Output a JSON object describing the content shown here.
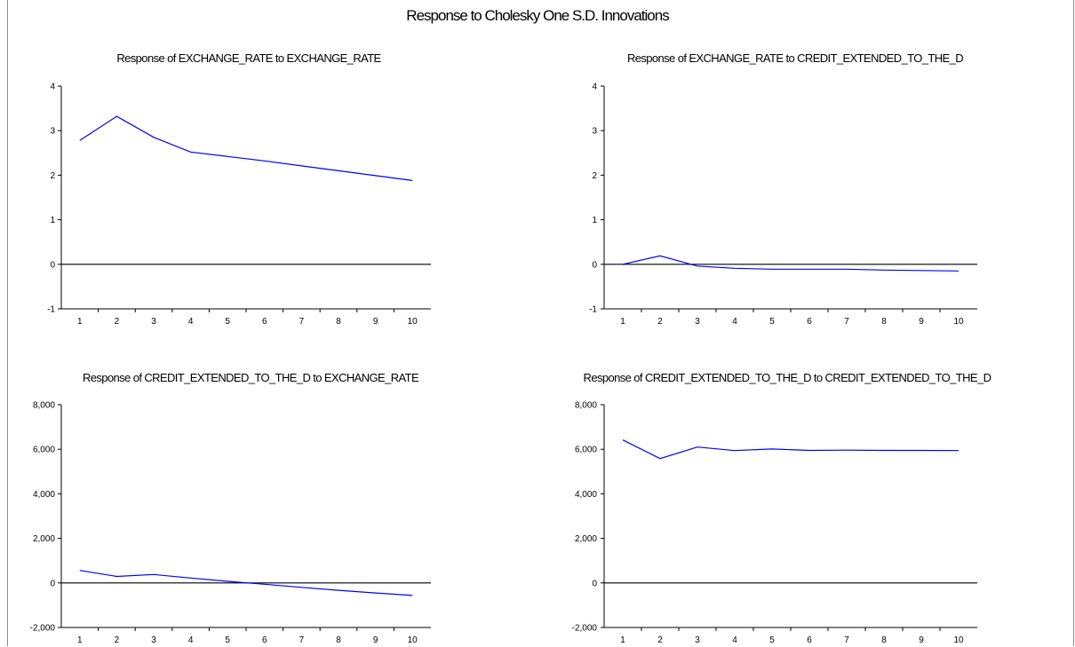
{
  "title": "Response to Cholesky One S.D. Innovations",
  "colors": {
    "series": "#0000ff",
    "axis": "#000000",
    "zero_line": "#000000"
  },
  "chart_data": [
    {
      "type": "line",
      "title": "Response of EXCHANGE_RATE to EXCHANGE_RATE",
      "x": [
        1,
        2,
        3,
        4,
        5,
        6,
        7,
        8,
        9,
        10
      ],
      "x_tick_labels": [
        "1",
        "2",
        "3",
        "4",
        "5",
        "6",
        "7",
        "8",
        "9",
        "10"
      ],
      "y_tick_labels": [
        "4",
        "3",
        "2",
        "1",
        "0",
        "-1"
      ],
      "ylim": [
        -1,
        4
      ],
      "series": [
        {
          "values": [
            2.78,
            3.32,
            2.85,
            2.52,
            2.42,
            2.32,
            2.21,
            2.1,
            1.99,
            1.88
          ]
        }
      ]
    },
    {
      "type": "line",
      "title": "Response of EXCHANGE_RATE to CREDIT_EXTENDED_TO_THE_D",
      "x": [
        1,
        2,
        3,
        4,
        5,
        6,
        7,
        8,
        9,
        10
      ],
      "x_tick_labels": [
        "1",
        "2",
        "3",
        "4",
        "5",
        "6",
        "7",
        "8",
        "9",
        "10"
      ],
      "y_tick_labels": [
        "4",
        "3",
        "2",
        "1",
        "0",
        "-1"
      ],
      "ylim": [
        -1,
        4
      ],
      "series": [
        {
          "values": [
            0.0,
            0.19,
            -0.04,
            -0.09,
            -0.11,
            -0.11,
            -0.11,
            -0.13,
            -0.14,
            -0.15
          ]
        }
      ]
    },
    {
      "type": "line",
      "title": "Response of CREDIT_EXTENDED_TO_THE_D to EXCHANGE_RATE",
      "x": [
        1,
        2,
        3,
        4,
        5,
        6,
        7,
        8,
        9,
        10
      ],
      "x_tick_labels": [
        "1",
        "2",
        "3",
        "4",
        "5",
        "6",
        "7",
        "8",
        "9",
        "10"
      ],
      "y_tick_labels": [
        "8,000",
        "6,000",
        "4,000",
        "2,000",
        "0",
        "-2,000"
      ],
      "ylim": [
        -2000,
        8000
      ],
      "series": [
        {
          "values": [
            560,
            290,
            380,
            220,
            70,
            -60,
            -200,
            -330,
            -450,
            -560
          ]
        }
      ]
    },
    {
      "type": "line",
      "title": "Response of CREDIT_EXTENDED_TO_THE_D to CREDIT_EXTENDED_TO_THE_D",
      "x": [
        1,
        2,
        3,
        4,
        5,
        6,
        7,
        8,
        9,
        10
      ],
      "x_tick_labels": [
        "1",
        "2",
        "3",
        "4",
        "5",
        "6",
        "7",
        "8",
        "9",
        "10"
      ],
      "y_tick_labels": [
        "8,000",
        "6,000",
        "4,000",
        "2,000",
        "0",
        "-2,000"
      ],
      "ylim": [
        -2000,
        8000
      ],
      "series": [
        {
          "values": [
            6420,
            5580,
            6100,
            5940,
            6010,
            5950,
            5960,
            5950,
            5950,
            5940
          ]
        }
      ]
    }
  ]
}
